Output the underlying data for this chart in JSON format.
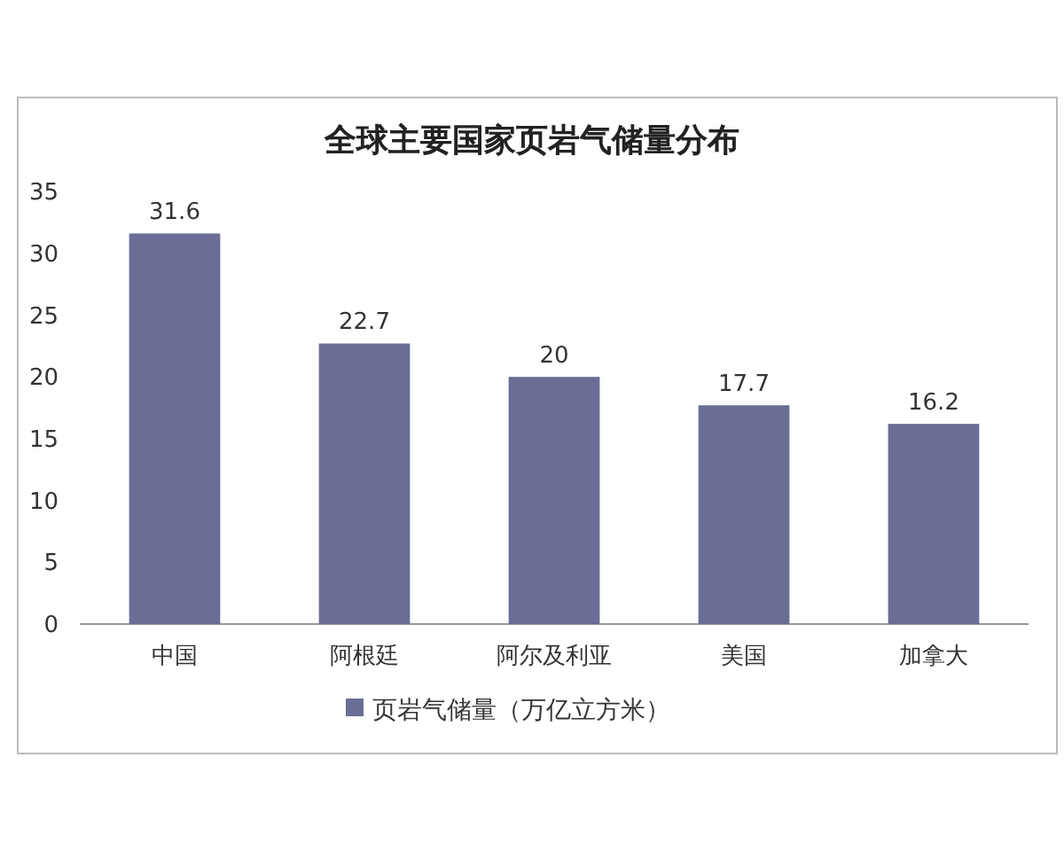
{
  "chart_data": {
    "type": "bar",
    "title": "全球主要国家页岩气储量分布",
    "categories": [
      "中国",
      "阿根廷",
      "阿尔及利亚",
      "美国",
      "加拿大"
    ],
    "series": [
      {
        "name": "页岩气储量（万亿立方米）",
        "color": "#6a6e96",
        "values": [
          31.6,
          22.7,
          20,
          17.7,
          16.2
        ]
      }
    ],
    "ylim": [
      0,
      35
    ],
    "yticks": [
      0,
      5,
      10,
      15,
      20,
      25,
      30,
      35
    ],
    "data_labels": true,
    "legend": "bottom",
    "grid": false
  }
}
